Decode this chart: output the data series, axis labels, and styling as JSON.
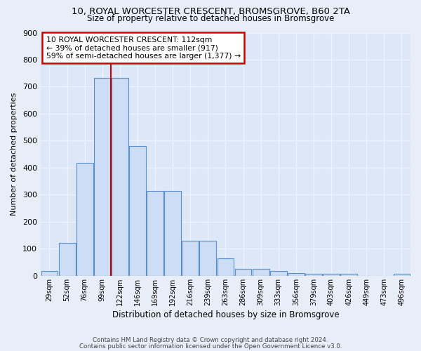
{
  "title_line1": "10, ROYAL WORCESTER CRESCENT, BROMSGROVE, B60 2TA",
  "title_line2": "Size of property relative to detached houses in Bromsgrove",
  "xlabel": "Distribution of detached houses by size in Bromsgrove",
  "ylabel": "Number of detached properties",
  "bar_color": "#ccddf5",
  "bar_edge_color": "#5b8fcb",
  "categories": [
    "29sqm",
    "52sqm",
    "76sqm",
    "99sqm",
    "122sqm",
    "146sqm",
    "169sqm",
    "192sqm",
    "216sqm",
    "239sqm",
    "263sqm",
    "286sqm",
    "309sqm",
    "333sqm",
    "356sqm",
    "379sqm",
    "403sqm",
    "426sqm",
    "449sqm",
    "473sqm",
    "496sqm"
  ],
  "values": [
    18,
    122,
    418,
    733,
    733,
    480,
    315,
    315,
    130,
    130,
    65,
    25,
    25,
    18,
    10,
    8,
    8,
    8,
    0,
    0,
    7
  ],
  "red_line_x": 3.5,
  "annotation_text": "10 ROYAL WORCESTER CRESCENT: 112sqm\n← 39% of detached houses are smaller (917)\n59% of semi-detached houses are larger (1,377) →",
  "annotation_box_color": "#ffffff",
  "annotation_box_edge": "#cc0000",
  "ylim": [
    0,
    900
  ],
  "yticks": [
    0,
    100,
    200,
    300,
    400,
    500,
    600,
    700,
    800,
    900
  ],
  "footer_line1": "Contains HM Land Registry data © Crown copyright and database right 2024.",
  "footer_line2": "Contains public sector information licensed under the Open Government Licence v3.0.",
  "fig_background": "#e8eef8",
  "plot_background": "#dce8f8",
  "grid_color": "#f0f4ff"
}
